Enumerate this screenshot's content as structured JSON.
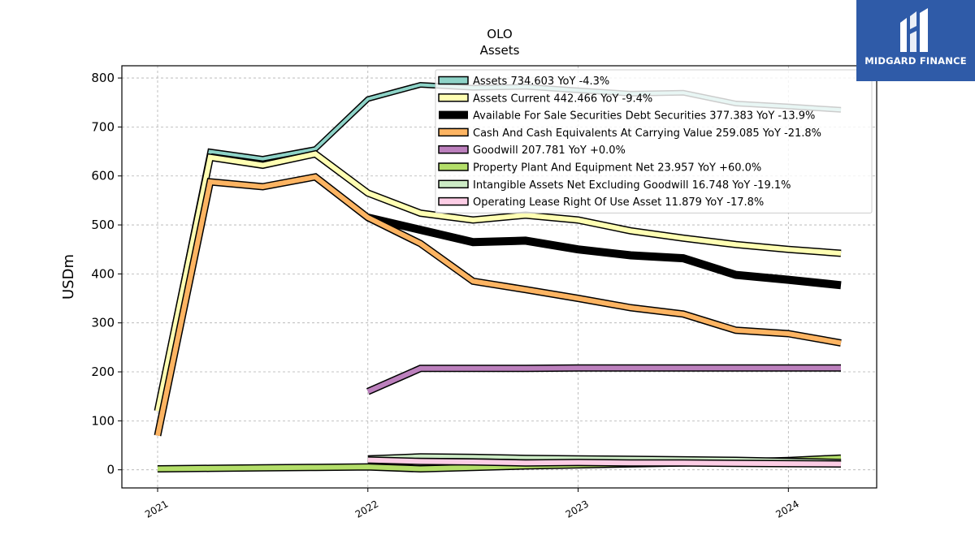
{
  "logo": {
    "text": "MIDGARD FINANCE",
    "color": "#2f5ba8"
  },
  "chart_data": {
    "type": "line",
    "title": "OLO",
    "subtitle": "Assets",
    "ylabel": "USDm",
    "xlabel": "",
    "ylim": [
      -37,
      825
    ],
    "xlim": [
      2020.83,
      2024.42
    ],
    "yticks": [
      0,
      100,
      200,
      300,
      400,
      500,
      600,
      700,
      800
    ],
    "xticks": [
      2021,
      2022,
      2023,
      2024
    ],
    "xtick_labels": [
      "2021",
      "2022",
      "2023",
      "2024"
    ],
    "grid": true,
    "legend_position": "top-right",
    "series": [
      {
        "name": "Assets",
        "legend": "Assets  734.603 YoY -4.3%",
        "color": "#8dd3c7",
        "width": 4,
        "x": [
          2021.0,
          2021.25,
          2021.5,
          2021.75,
          2022.0,
          2022.25,
          2022.5,
          2022.75,
          2023.0,
          2023.25,
          2023.5,
          2023.75,
          2024.0,
          2024.25
        ],
        "y": [
          125,
          650,
          635,
          655,
          757,
          786,
          780,
          782,
          775,
          768,
          770,
          748,
          742,
          735
        ]
      },
      {
        "name": "Assets Current",
        "legend": "Assets Current  442.466 YoY -9.4%",
        "color": "#ffffb3",
        "width": 6,
        "x": [
          2021.0,
          2021.25,
          2021.5,
          2021.75,
          2022.0,
          2022.25,
          2022.5,
          2022.75,
          2023.0,
          2023.25,
          2023.5,
          2023.75,
          2024.0,
          2024.25
        ],
        "y": [
          120,
          638,
          622,
          645,
          565,
          524,
          510,
          520,
          510,
          488,
          473,
          460,
          450,
          442
        ]
      },
      {
        "name": "Available For Sale Securities Debt Securities",
        "legend": "Available For Sale Securities Debt Securities  377.383 YoY -13.9%",
        "color": "#000000",
        "width": 10,
        "x": [
          2022.0,
          2022.25,
          2022.5,
          2022.75,
          2023.0,
          2023.25,
          2023.5,
          2023.75,
          2024.0,
          2024.25
        ],
        "y": [
          515,
          490,
          465,
          468,
          450,
          438,
          432,
          398,
          388,
          377
        ]
      },
      {
        "name": "Cash And Cash Equivalents At Carrying Value",
        "legend": "Cash And Cash Equivalents At Carrying Value  259.085 YoY -21.8%",
        "color": "#fdb462",
        "width": 6,
        "x": [
          2021.0,
          2021.25,
          2021.5,
          2021.75,
          2022.0,
          2022.25,
          2022.5,
          2022.75,
          2023.0,
          2023.25,
          2023.5,
          2023.75,
          2024.0,
          2024.25
        ],
        "y": [
          70,
          588,
          578,
          598,
          515,
          462,
          385,
          368,
          350,
          331,
          318,
          285,
          278,
          259
        ]
      },
      {
        "name": "Goodwill",
        "legend": "Goodwill  207.781 YoY +0.0%",
        "color": "#bc80bd",
        "width": 6,
        "x": [
          2022.0,
          2022.25,
          2022.5,
          2022.75,
          2023.0,
          2023.25,
          2023.5,
          2023.75,
          2024.0,
          2024.25
        ],
        "y": [
          160,
          207,
          207,
          207,
          207.8,
          207.8,
          207.8,
          207.8,
          207.8,
          207.8
        ]
      },
      {
        "name": "Property Plant And Equipment Net",
        "legend": "Property Plant And Equipment Net  23.957 YoY +60.0%",
        "color": "#b3de69",
        "width": 6,
        "x": [
          2021.0,
          2021.25,
          2021.5,
          2021.75,
          2022.0,
          2022.25,
          2022.5,
          2022.75,
          2023.0,
          2023.25,
          2023.5,
          2023.75,
          2024.0,
          2024.25
        ],
        "y": [
          2,
          3,
          4,
          5,
          6,
          2,
          5,
          8,
          10,
          12,
          14,
          16,
          19,
          23.957
        ]
      },
      {
        "name": "Intangible Assets Net Excluding Goodwill",
        "legend": "Intangible Assets Net Excluding Goodwill  16.748 YoY -19.1%",
        "color": "#ccebc5",
        "width": 4,
        "x": [
          2022.0,
          2022.25,
          2022.5,
          2022.75,
          2023.0,
          2023.25,
          2023.5,
          2023.75,
          2024.0,
          2024.25
        ],
        "y": [
          24,
          28,
          27,
          25,
          24,
          23,
          22,
          21,
          19,
          16.748
        ]
      },
      {
        "name": "Operating Lease Right Of Use Asset",
        "legend": "Operating Lease Right Of Use Asset  11.879 YoY -17.8%",
        "color": "#fccde5",
        "width": 6,
        "x": [
          2022.0,
          2022.25,
          2022.5,
          2022.75,
          2023.0,
          2023.25,
          2023.5,
          2023.75,
          2024.0,
          2024.25
        ],
        "y": [
          20,
          17,
          16,
          14,
          15,
          14,
          14,
          13,
          12.5,
          11.879
        ]
      }
    ]
  }
}
